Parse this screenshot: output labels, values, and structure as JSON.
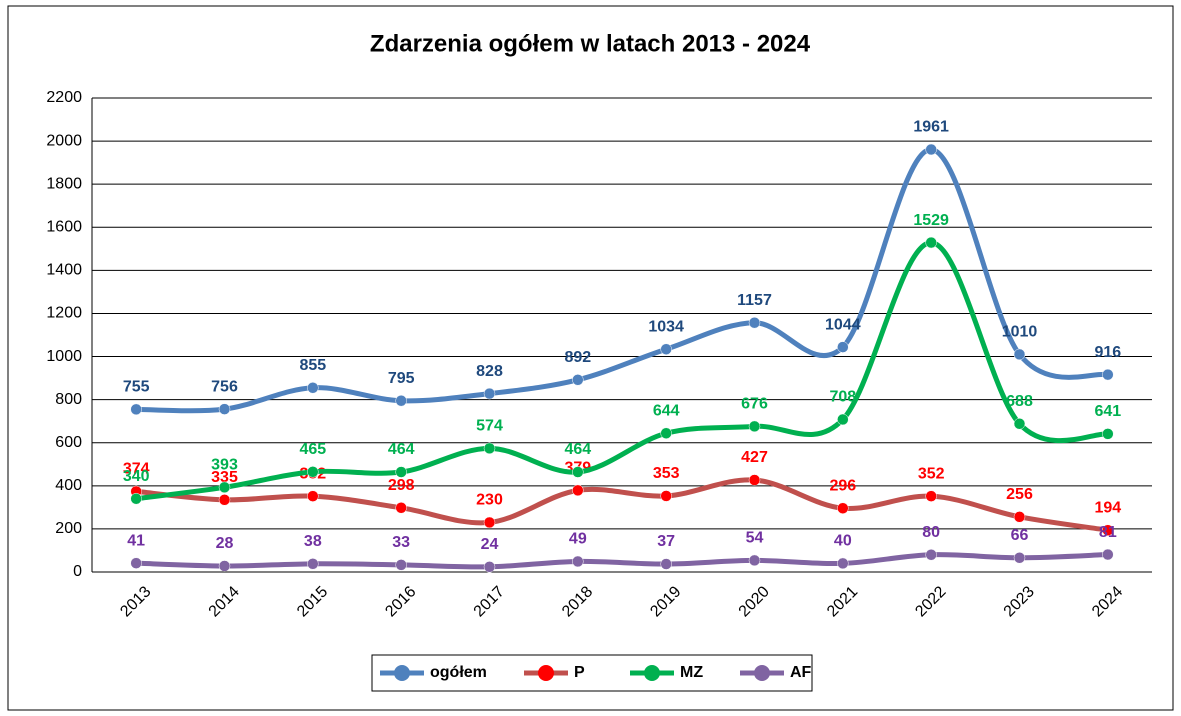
{
  "chart_data": {
    "type": "line",
    "title": "Zdarzenia ogółem w latach  2013 - 2024",
    "categories": [
      "2013",
      "2014",
      "2015",
      "2016",
      "2017",
      "2018",
      "2019",
      "2020",
      "2021",
      "2022",
      "2023",
      "2024"
    ],
    "series": [
      {
        "name": "ogółem",
        "color": "#4f81bd",
        "label_color": "#1f497d",
        "values": [
          755,
          756,
          855,
          795,
          828,
          892,
          1034,
          1157,
          1044,
          1961,
          1010,
          916
        ]
      },
      {
        "name": "P",
        "color": "#c0504d",
        "marker_color": "#ff0000",
        "label_color": "#ff0000",
        "values": [
          374,
          335,
          352,
          298,
          230,
          379,
          353,
          427,
          296,
          352,
          256,
          194
        ]
      },
      {
        "name": "MZ",
        "color": "#00b050",
        "label_color": "#00b050",
        "values": [
          340,
          393,
          465,
          464,
          574,
          464,
          644,
          676,
          708,
          1529,
          688,
          641
        ]
      },
      {
        "name": "AF",
        "color": "#8064a2",
        "label_color": "#7030a0",
        "values": [
          41,
          28,
          38,
          33,
          24,
          49,
          37,
          54,
          40,
          80,
          66,
          81
        ]
      }
    ],
    "ylim": [
      0,
      2200
    ],
    "yticks": [
      0,
      200,
      400,
      600,
      800,
      1000,
      1200,
      1400,
      1600,
      1800,
      2000,
      2200
    ],
    "grid": true,
    "smooth": true,
    "legend": "bottom"
  }
}
